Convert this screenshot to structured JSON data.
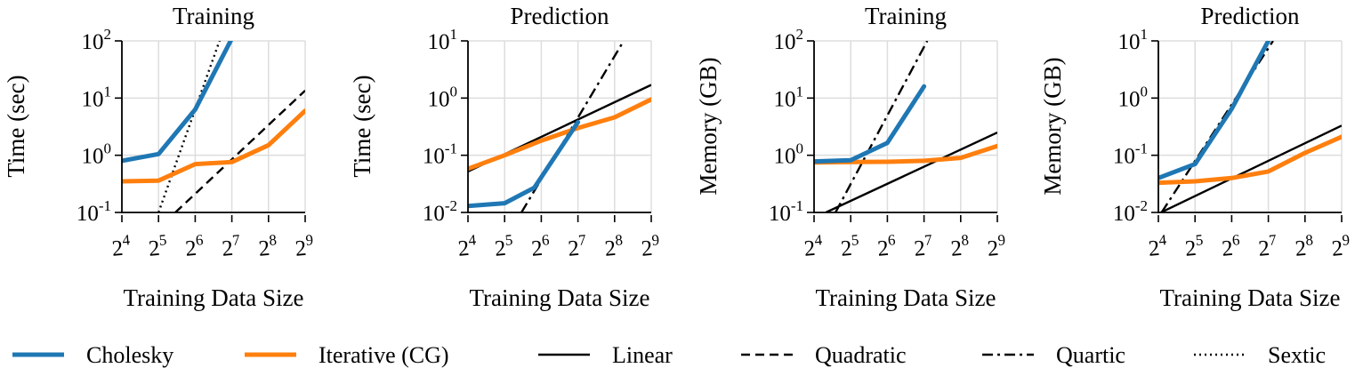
{
  "chart_data": [
    {
      "type": "line",
      "title": "Training",
      "xlabel": "Training Data Size",
      "ylabel": "Time (sec)",
      "x_scale": "log2",
      "y_scale": "log10",
      "xlim_exp": [
        4,
        9
      ],
      "ylim_exp": [
        -1,
        2
      ],
      "grid": true,
      "series": [
        {
          "name": "Cholesky",
          "x": [
            16,
            32,
            64,
            128
          ],
          "values": [
            0.8,
            1.05,
            6.3,
            110
          ]
        },
        {
          "name": "Iterative (CG)",
          "x": [
            16,
            32,
            64,
            128,
            256,
            512
          ],
          "values": [
            0.35,
            0.36,
            0.7,
            0.76,
            1.5,
            6.0
          ]
        },
        {
          "name": "Quadratic",
          "x": [
            44,
            512
          ],
          "values": [
            0.1,
            13.5
          ]
        },
        {
          "name": "Sextic",
          "x": [
            32,
            103
          ],
          "values": [
            0.1,
            110
          ]
        }
      ]
    },
    {
      "type": "line",
      "title": "Prediction",
      "xlabel": "Training Data Size",
      "ylabel": "Time (sec)",
      "x_scale": "log2",
      "y_scale": "log10",
      "xlim_exp": [
        4,
        9
      ],
      "ylim_exp": [
        -2,
        1
      ],
      "grid": true,
      "series": [
        {
          "name": "Cholesky",
          "x": [
            16,
            32,
            56,
            128
          ],
          "values": [
            0.013,
            0.0145,
            0.027,
            0.38
          ]
        },
        {
          "name": "Iterative (CG)",
          "x": [
            16,
            32,
            64,
            128,
            256,
            512
          ],
          "values": [
            0.058,
            0.1,
            0.18,
            0.3,
            0.46,
            0.95
          ]
        },
        {
          "name": "Linear",
          "x": [
            16,
            512
          ],
          "values": [
            0.052,
            1.7
          ]
        },
        {
          "name": "Quartic",
          "x": [
            44,
            304
          ],
          "values": [
            0.01,
            10
          ]
        }
      ]
    },
    {
      "type": "line",
      "title": "Training",
      "xlabel": "Training Data Size",
      "ylabel": "Memory (GB)",
      "x_scale": "log2",
      "y_scale": "log10",
      "xlim_exp": [
        4,
        9
      ],
      "ylim_exp": [
        -1,
        2
      ],
      "grid": true,
      "series": [
        {
          "name": "Cholesky",
          "x": [
            16,
            32,
            64,
            128
          ],
          "values": [
            0.78,
            0.82,
            1.65,
            16
          ]
        },
        {
          "name": "Iterative (CG)",
          "x": [
            16,
            32,
            64,
            128,
            256,
            512
          ],
          "values": [
            0.75,
            0.76,
            0.77,
            0.8,
            0.9,
            1.45
          ]
        },
        {
          "name": "Linear",
          "x": [
            20,
            512
          ],
          "values": [
            0.1,
            2.5
          ]
        },
        {
          "name": "Quartic",
          "x": [
            24,
            136
          ],
          "values": [
            0.1,
            100
          ]
        }
      ]
    },
    {
      "type": "line",
      "title": "Prediction",
      "xlabel": "Training Data Size",
      "ylabel": "Memory (GB)",
      "x_scale": "log2",
      "y_scale": "log10",
      "xlim_exp": [
        4,
        9
      ],
      "ylim_exp": [
        -2,
        1
      ],
      "grid": true,
      "series": [
        {
          "name": "Cholesky",
          "x": [
            16,
            32,
            64,
            128
          ],
          "values": [
            0.04,
            0.07,
            0.65,
            10
          ]
        },
        {
          "name": "Iterative (CG)",
          "x": [
            16,
            32,
            64,
            128,
            256,
            512
          ],
          "values": [
            0.033,
            0.035,
            0.04,
            0.052,
            0.11,
            0.21
          ]
        },
        {
          "name": "Linear",
          "x": [
            16,
            512
          ],
          "values": [
            0.0095,
            0.33
          ]
        },
        {
          "name": "Quartic",
          "x": [
            17,
            140
          ],
          "values": [
            0.01,
            10
          ]
        }
      ]
    }
  ],
  "legend": [
    {
      "label": "Cholesky",
      "color": "#1f77b4",
      "style": "solid-thick"
    },
    {
      "label": "Iterative (CG)",
      "color": "#ff7f0e",
      "style": "solid-thick"
    },
    {
      "label": "Linear",
      "color": "#000000",
      "style": "solid"
    },
    {
      "label": "Quadratic",
      "color": "#000000",
      "style": "dashed"
    },
    {
      "label": "Quartic",
      "color": "#000000",
      "style": "dashdot"
    },
    {
      "label": "Sextic",
      "color": "#000000",
      "style": "dotted"
    }
  ],
  "colors": {
    "Cholesky": "#1f77b4",
    "Iterative (CG)": "#ff7f0e",
    "Linear": "#000000",
    "Quadratic": "#000000",
    "Quartic": "#000000",
    "Sextic": "#000000",
    "grid": "#dddddd"
  }
}
